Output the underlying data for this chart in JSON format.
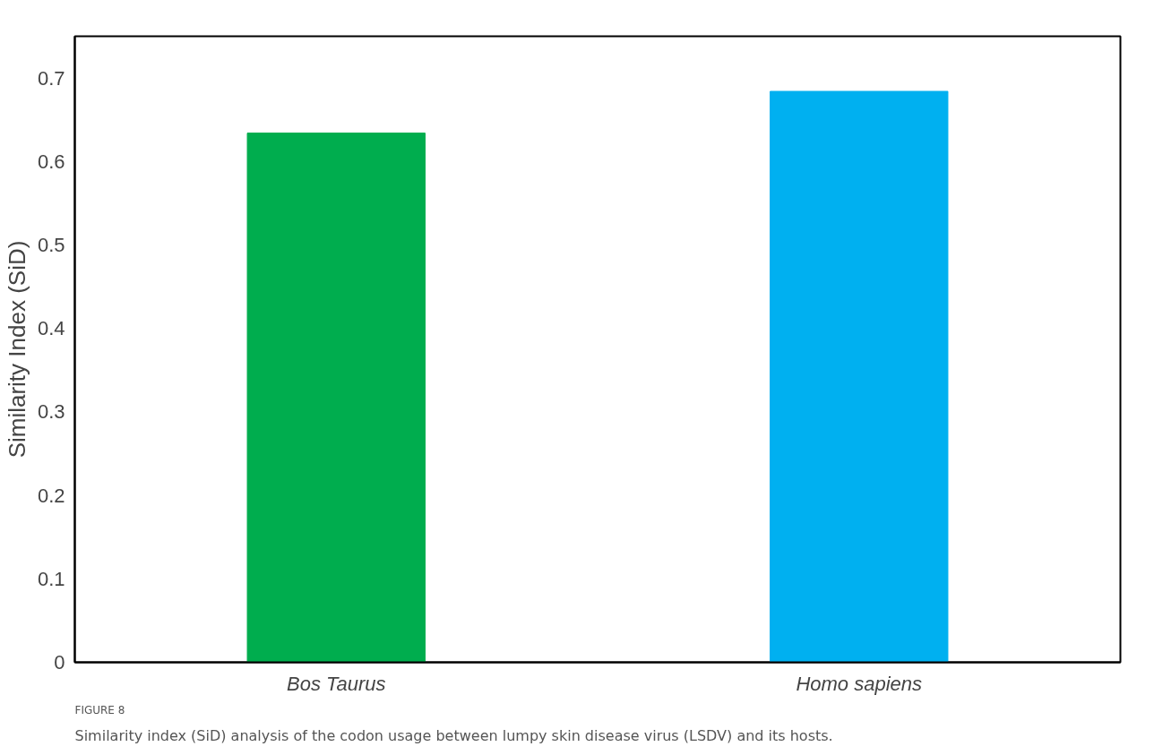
{
  "chart_data": {
    "type": "bar",
    "ylabel": "Similarity Index (SiD)",
    "categories": [
      "Bos Taurus",
      "Homo sapiens"
    ],
    "values": [
      0.634,
      0.684
    ],
    "colors": [
      "#00ad4e",
      "#00b0f0"
    ],
    "ylim": [
      0,
      0.75
    ],
    "yticks": [
      0,
      0.1,
      0.2,
      0.3,
      0.4,
      0.5,
      0.6,
      0.7
    ],
    "grid": false,
    "annotations": [
      "FIGURE 8",
      "Similarity index (SiD) analysis of the codon usage between lumpy skin disease virus (LSDV) and its hosts."
    ]
  }
}
